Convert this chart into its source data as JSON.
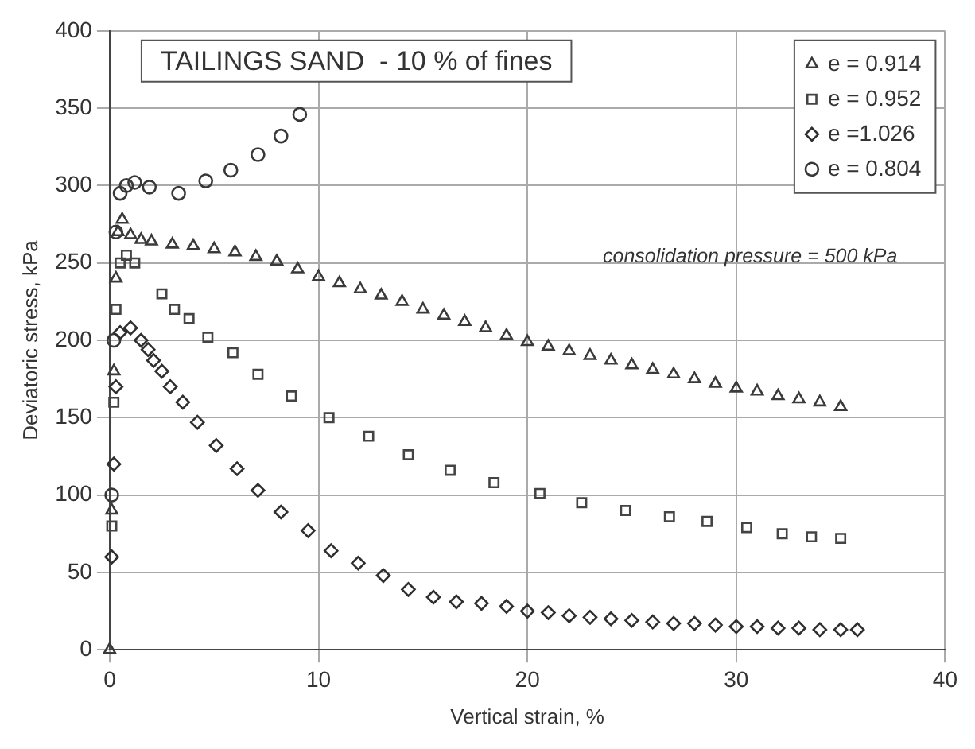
{
  "chart_data": {
    "type": "scatter",
    "title": "TAILINGS SAND  - 10 % of fines",
    "xlabel": "Vertical strain, %",
    "ylabel": "Deviatoric stress, kPa",
    "annotations": [
      "consolidation pressure = 500 kPa"
    ],
    "xlim": [
      0,
      40
    ],
    "ylim": [
      0,
      400
    ],
    "xticks": [
      0,
      10,
      20,
      30,
      40
    ],
    "yticks": [
      0,
      50,
      100,
      150,
      200,
      250,
      300,
      350,
      400
    ],
    "grid": true,
    "legend": "top right",
    "series": [
      {
        "name": "e = 0.914",
        "color": "#3a3a3a",
        "marker": "triangle",
        "x": [
          0,
          0.1,
          0.2,
          0.3,
          0.4,
          0.6,
          1,
          1.5,
          2,
          3,
          4,
          5,
          6,
          7,
          8,
          9,
          10,
          11,
          12,
          13,
          14,
          15,
          16,
          17,
          18,
          19,
          20,
          21,
          22,
          23,
          24,
          25,
          26,
          27,
          28,
          29,
          30,
          31,
          32,
          33,
          34,
          35
        ],
        "values": [
          0,
          90,
          180,
          240,
          270,
          278,
          268,
          265,
          264,
          262,
          261,
          259,
          257,
          254,
          251,
          246,
          241,
          237,
          233,
          229,
          225,
          220,
          216,
          212,
          208,
          203,
          199,
          196,
          193,
          190,
          187,
          184,
          181,
          178,
          175,
          172,
          169,
          167,
          164,
          162,
          160,
          157
        ]
      },
      {
        "name": "e = 0.952",
        "color": "#444444",
        "marker": "square",
        "x": [
          0.1,
          0.2,
          0.3,
          0.5,
          0.8,
          1.2,
          2.5,
          3.1,
          3.8,
          4.7,
          5.9,
          7.1,
          8.7,
          10.5,
          12.4,
          14.3,
          16.3,
          18.4,
          20.6,
          22.6,
          24.7,
          26.8,
          28.6,
          30.5,
          32.2,
          33.6,
          35
        ],
        "values": [
          80,
          160,
          220,
          250,
          255,
          250,
          230,
          220,
          214,
          202,
          192,
          178,
          164,
          150,
          138,
          126,
          116,
          108,
          101,
          95,
          90,
          86,
          83,
          79,
          75,
          73,
          72
        ]
      },
      {
        "name": "e =1.026",
        "color": "#2f2f2f",
        "marker": "diamond",
        "x": [
          0.1,
          0.2,
          0.3,
          0.5,
          1,
          1.5,
          1.84,
          2.1,
          2.5,
          2.9,
          3.5,
          4.2,
          5.1,
          6.1,
          7.1,
          8.2,
          9.5,
          10.6,
          11.9,
          13.1,
          14.3,
          15.5,
          16.6,
          17.8,
          19,
          20,
          21,
          22,
          23,
          24,
          25,
          26,
          27,
          28,
          29,
          30,
          31,
          32,
          33,
          34,
          35,
          35.8
        ],
        "values": [
          60,
          120,
          170,
          205,
          208,
          200,
          194,
          187,
          180,
          170,
          160,
          147,
          132,
          117,
          103,
          89,
          77,
          64,
          56,
          48,
          39,
          34,
          31,
          30,
          28,
          25,
          24,
          22,
          21,
          20,
          19,
          18,
          17,
          17,
          16,
          15,
          15,
          14,
          14,
          13,
          13,
          13
        ]
      },
      {
        "name": "e = 0.804",
        "color": "#383838",
        "marker": "circle",
        "x": [
          0.1,
          0.2,
          0.3,
          0.5,
          0.8,
          1.2,
          1.9,
          3.3,
          4.6,
          5.8,
          7.1,
          8.2,
          9.1
        ],
        "values": [
          100,
          200,
          270,
          295,
          300,
          302,
          299,
          295,
          303,
          310,
          320,
          332,
          346
        ]
      }
    ]
  }
}
